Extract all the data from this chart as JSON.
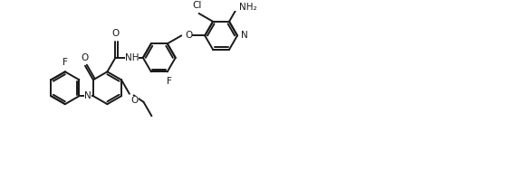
{
  "bg_color": "#ffffff",
  "line_color": "#1a1a1a",
  "line_width": 1.4,
  "font_size": 7.5,
  "fig_width": 5.84,
  "fig_height": 1.98,
  "dpi": 100,
  "xlim": [
    0,
    14
  ],
  "ylim": [
    0,
    4.75
  ]
}
